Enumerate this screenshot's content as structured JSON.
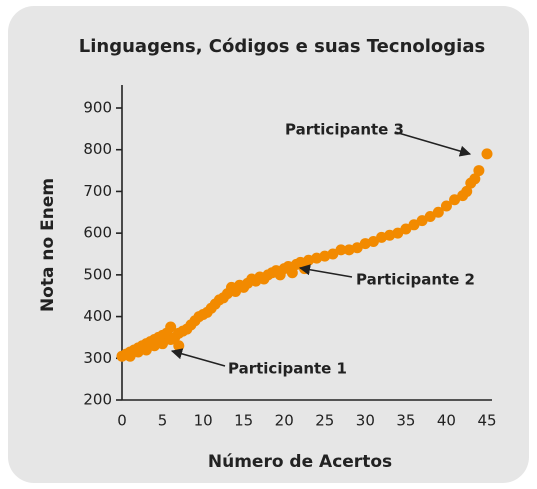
{
  "chart_data": {
    "type": "scatter",
    "title": "Linguagens, Códigos e suas Tecnologias",
    "xlabel": "Número de Acertos",
    "ylabel": "Nota no Enem",
    "color": "#f28a00",
    "xlim": [
      0,
      45
    ],
    "xticks": [
      0,
      5,
      10,
      15,
      20,
      25,
      30,
      35,
      40,
      45
    ],
    "ylim": [
      200,
      900
    ],
    "yticks": [
      200,
      300,
      400,
      500,
      600,
      700,
      800,
      900
    ],
    "annotations": [
      "Participante 1",
      "Participante 2",
      "Participante 3"
    ],
    "x": [
      0,
      0.5,
      1,
      1,
      1.5,
      2,
      2,
      2.5,
      3,
      3,
      3.5,
      4,
      4,
      4.5,
      5,
      5,
      5.5,
      6,
      6,
      6.5,
      7,
      7,
      7.5,
      8,
      8.5,
      9,
      9.5,
      10,
      10.5,
      11,
      11.5,
      12,
      12.5,
      13,
      13.5,
      14,
      14.5,
      15,
      15.5,
      16,
      16.5,
      17,
      17.5,
      18,
      18.5,
      19,
      19.5,
      20,
      20.5,
      21,
      21.5,
      22,
      22.5,
      23,
      24,
      25,
      26,
      27,
      28,
      29,
      30,
      31,
      32,
      33,
      34,
      35,
      36,
      37,
      38,
      39,
      40,
      41,
      42,
      42.5,
      43,
      43.5,
      44,
      45
    ],
    "values": [
      305,
      310,
      315,
      305,
      320,
      325,
      315,
      330,
      335,
      320,
      340,
      345,
      330,
      350,
      355,
      335,
      360,
      345,
      375,
      350,
      360,
      330,
      365,
      370,
      380,
      390,
      400,
      405,
      410,
      420,
      430,
      440,
      445,
      455,
      470,
      460,
      475,
      470,
      480,
      490,
      485,
      495,
      490,
      500,
      505,
      510,
      500,
      515,
      520,
      505,
      525,
      530,
      515,
      535,
      540,
      545,
      550,
      560,
      560,
      565,
      575,
      580,
      590,
      595,
      600,
      610,
      620,
      630,
      640,
      650,
      665,
      680,
      690,
      700,
      720,
      730,
      750,
      790
    ]
  }
}
